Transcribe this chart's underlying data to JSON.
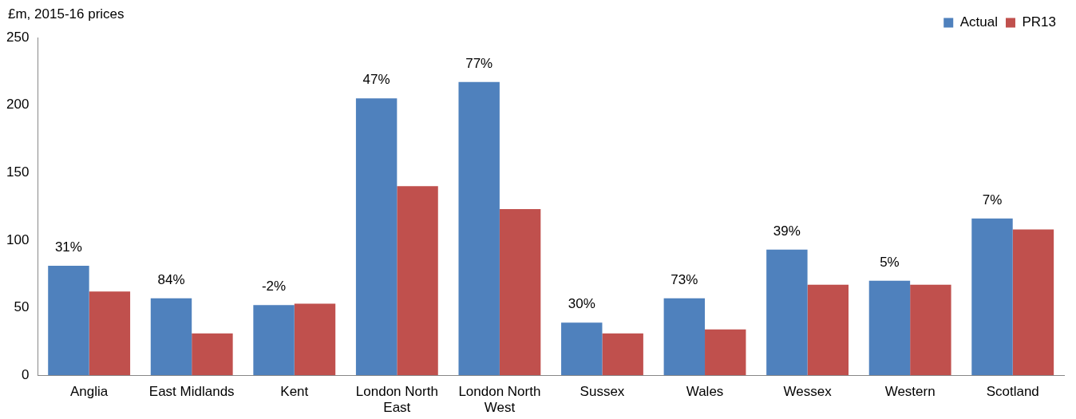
{
  "chart_data": {
    "type": "bar",
    "ylabel": "£m, 2015-16 prices",
    "categories": [
      "Anglia",
      "East Midlands",
      "Kent",
      "London North East",
      "London North West",
      "Sussex",
      "Wales",
      "Wessex",
      "Western",
      "Scotland"
    ],
    "series": [
      {
        "name": "Actual",
        "color": "#4f81bd",
        "values": [
          81,
          57,
          52,
          205,
          217,
          39,
          57,
          93,
          70,
          116
        ]
      },
      {
        "name": "PR13",
        "color": "#c0504d",
        "values": [
          62,
          31,
          53,
          140,
          123,
          31,
          34,
          67,
          67,
          108
        ]
      }
    ],
    "annotations": [
      {
        "text": "31%",
        "x": "Anglia",
        "y": 81
      },
      {
        "text": "84%",
        "x": "East Midlands",
        "y": 57
      },
      {
        "text": "-2%",
        "x": "Kent",
        "y": 52
      },
      {
        "text": "47%",
        "x": "London North East",
        "y": 205
      },
      {
        "text": "77%",
        "x": "London North West",
        "y": 217
      },
      {
        "text": "30%",
        "x": "Sussex",
        "y": 39
      },
      {
        "text": "73%",
        "x": "Wales",
        "y": 57
      },
      {
        "text": "39%",
        "x": "Wessex",
        "y": 93
      },
      {
        "text": "5%",
        "x": "Western",
        "y": 70
      },
      {
        "text": "7%",
        "x": "Scotland",
        "y": 116
      }
    ],
    "ylim": [
      0,
      250
    ],
    "yticks": [
      0,
      50,
      100,
      150,
      200,
      250
    ],
    "grid": false,
    "legend": "top right"
  }
}
